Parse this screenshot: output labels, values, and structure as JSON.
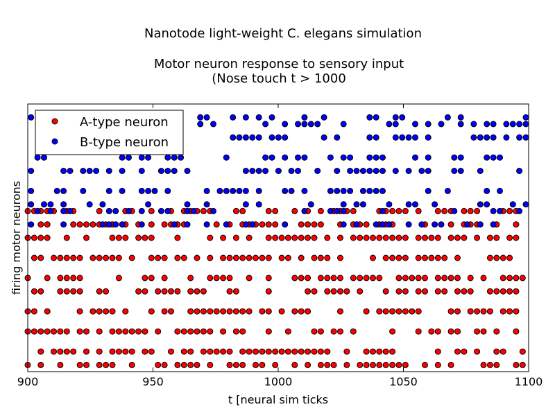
{
  "chart_data": {
    "type": "scatter",
    "title_lines": [
      "Nanotode light-weight C. elegans simulation",
      "",
      "Motor neuron response to sensory input",
      "(Nose touch t > 1000"
    ],
    "xlabel": "t [neural sim ticks",
    "ylabel": "firing motor neurons",
    "xlim": [
      900,
      1100
    ],
    "ylim": [
      0,
      40
    ],
    "xticks": [
      900,
      950,
      1000,
      1050,
      1100
    ],
    "grid": false,
    "legend": {
      "placement": "top-left",
      "entries": [
        "A-type neuron",
        "B-type neuron"
      ]
    },
    "series": [
      {
        "name": "A-type neuron",
        "color": "#ff0000",
        "x_start": 900,
        "x_step": 2.6,
        "y_values": [
          1,
          3,
          6,
          9,
          12,
          14,
          17,
          20,
          22,
          24
        ]
      },
      {
        "name": "B-type neuron",
        "color": "#0000ff",
        "x_start": 901.3,
        "x_step": 2.6,
        "y_values": [
          22,
          24,
          25,
          27,
          30,
          32,
          35,
          37,
          38
        ]
      }
    ]
  }
}
